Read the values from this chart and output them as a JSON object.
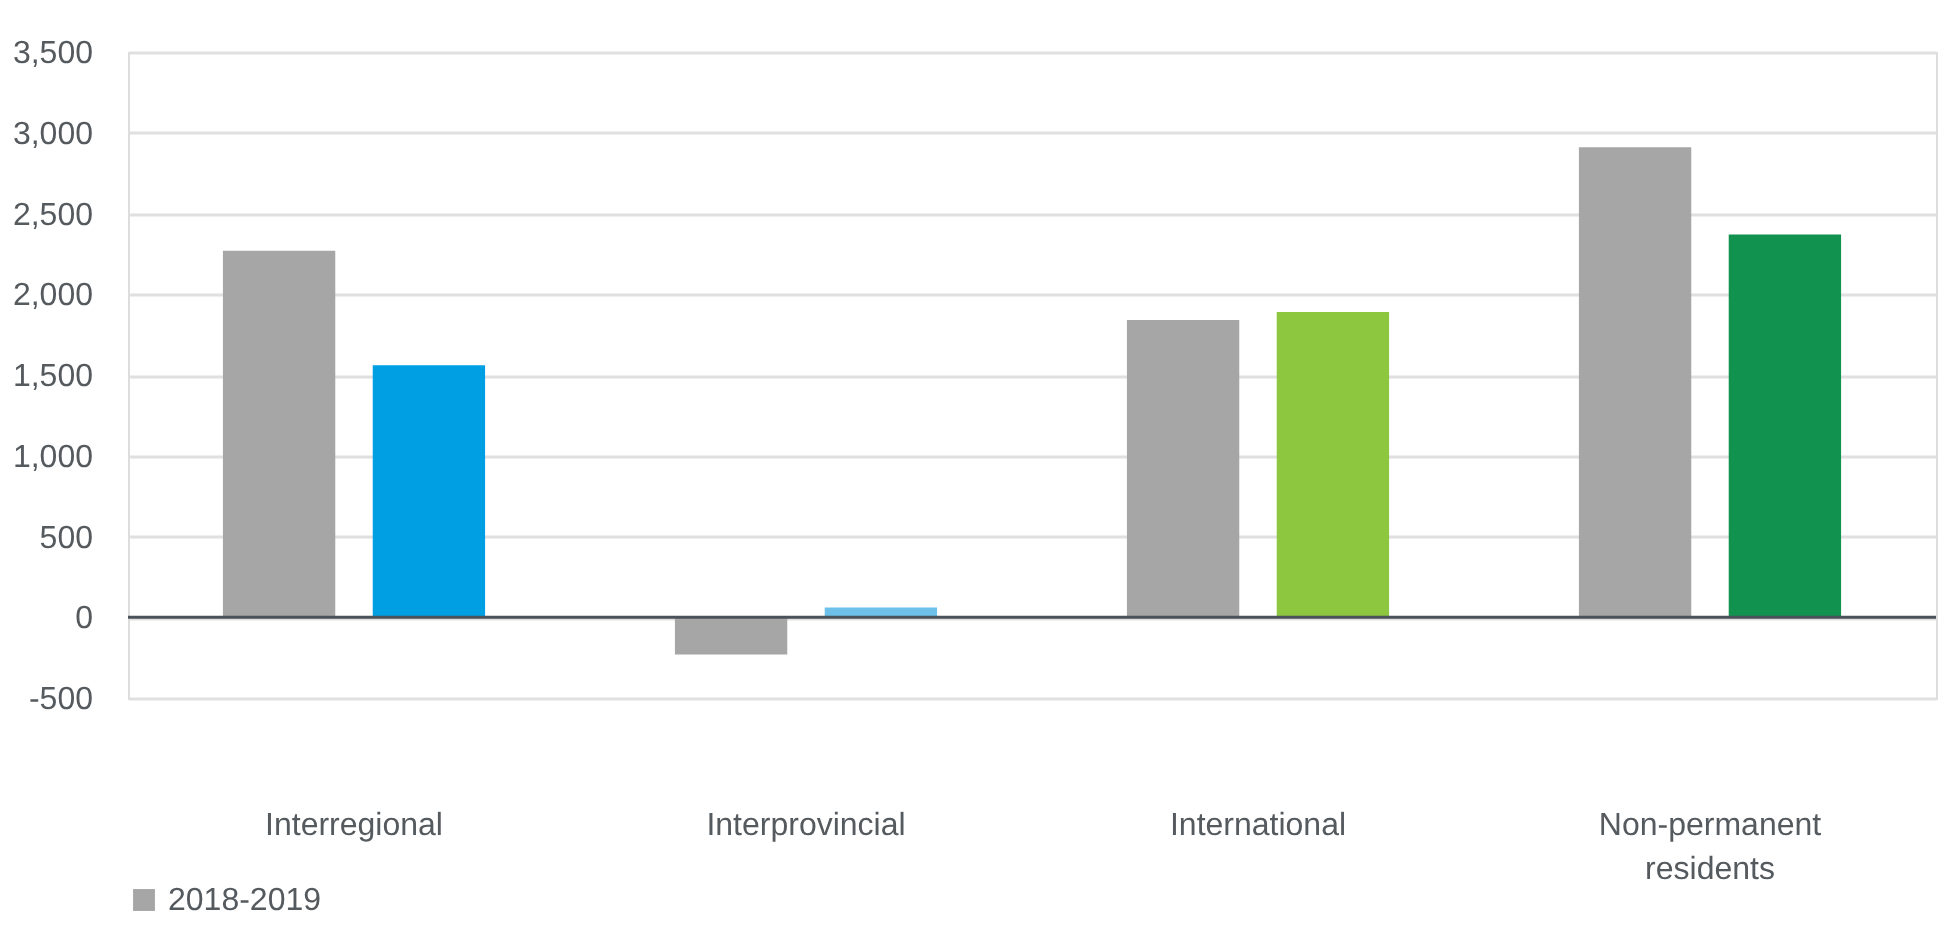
{
  "chart_data": {
    "type": "bar",
    "categories": [
      "Interregional",
      "Interprovincial",
      "International",
      "Non-permanent residents"
    ],
    "series": [
      {
        "name": "2018-2019",
        "color": "#a6a6a6",
        "values": [
          2270,
          -230,
          1840,
          2910
        ]
      },
      {
        "colors": [
          "#009fe3",
          "#6cc0ea",
          "#8dc63f",
          "#12924f"
        ],
        "values": [
          1560,
          60,
          1890,
          2370
        ]
      }
    ],
    "ylim": [
      -500,
      3500
    ],
    "yticks": [
      -500,
      0,
      500,
      {
        "value": 1000,
        "label": "1,000"
      },
      {
        "value": 1500,
        "label": "1,500"
      },
      {
        "value": 2000,
        "label": "2,000"
      },
      {
        "value": 2500,
        "label": "2,500"
      },
      {
        "value": 3000,
        "label": "3,000"
      },
      {
        "value": 3500,
        "label": "3,500"
      }
    ],
    "grid": "y",
    "legend": "bottom"
  }
}
